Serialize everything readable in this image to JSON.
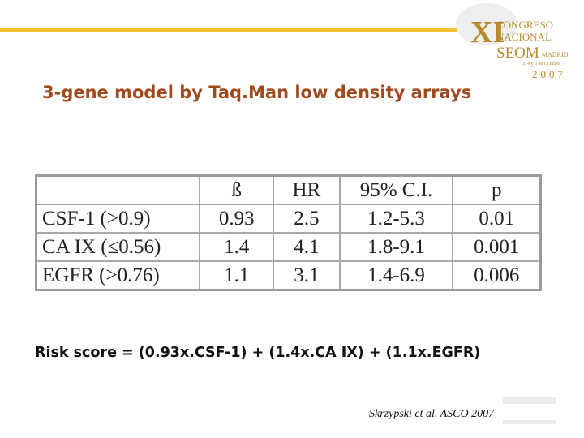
{
  "logo": {
    "numeral": "XI",
    "line1": "CONGRESO",
    "line2": "NACIONAL",
    "society": "SEOM",
    "city": "MADRID",
    "dates": "3, 4 y 5 de Octubre",
    "year": "2007"
  },
  "title": "3-gene model by Taq.Man low density arrays",
  "table": {
    "header": [
      "ß",
      "HR",
      "95% C.I.",
      "p"
    ],
    "rows": [
      [
        "CSF-1 (>0.9)",
        "0.93",
        "2.5",
        "1.2-5.3",
        "0.01"
      ],
      [
        "CA IX (≤0.56)",
        "1.4",
        "4.1",
        "1.8-9.1",
        "0.001"
      ],
      [
        "EGFR (>0.76)",
        "1.1",
        "3.1",
        "1.4-6.9",
        "0.006"
      ]
    ]
  },
  "formula": "Risk score = (0.93x.CSF-1) + (1.4x.CA IX) + (1.1x.EGFR)",
  "citation": "Skrzypski et al. ASCO 2007"
}
